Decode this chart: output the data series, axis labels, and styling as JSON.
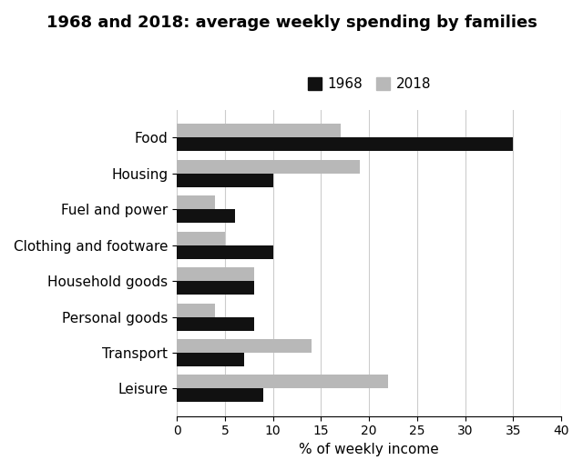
{
  "title": "1968 and 2018: average weekly spending by families",
  "categories": [
    "Food",
    "Housing",
    "Fuel and power",
    "Clothing and footware",
    "Household goods",
    "Personal goods",
    "Transport",
    "Leisure"
  ],
  "values_1968": [
    35,
    10,
    6,
    10,
    8,
    8,
    7,
    9
  ],
  "values_2018": [
    17,
    19,
    4,
    5,
    8,
    4,
    14,
    22
  ],
  "color_1968": "#111111",
  "color_2018": "#b8b8b8",
  "xlabel": "% of weekly income",
  "xlim": [
    0,
    40
  ],
  "xticks": [
    0,
    5,
    10,
    15,
    20,
    25,
    30,
    35,
    40
  ],
  "legend_labels": [
    "1968",
    "2018"
  ],
  "bar_height": 0.38,
  "grid_color": "#cccccc",
  "background_color": "#ffffff",
  "title_fontsize": 13,
  "label_fontsize": 11,
  "tick_fontsize": 10
}
